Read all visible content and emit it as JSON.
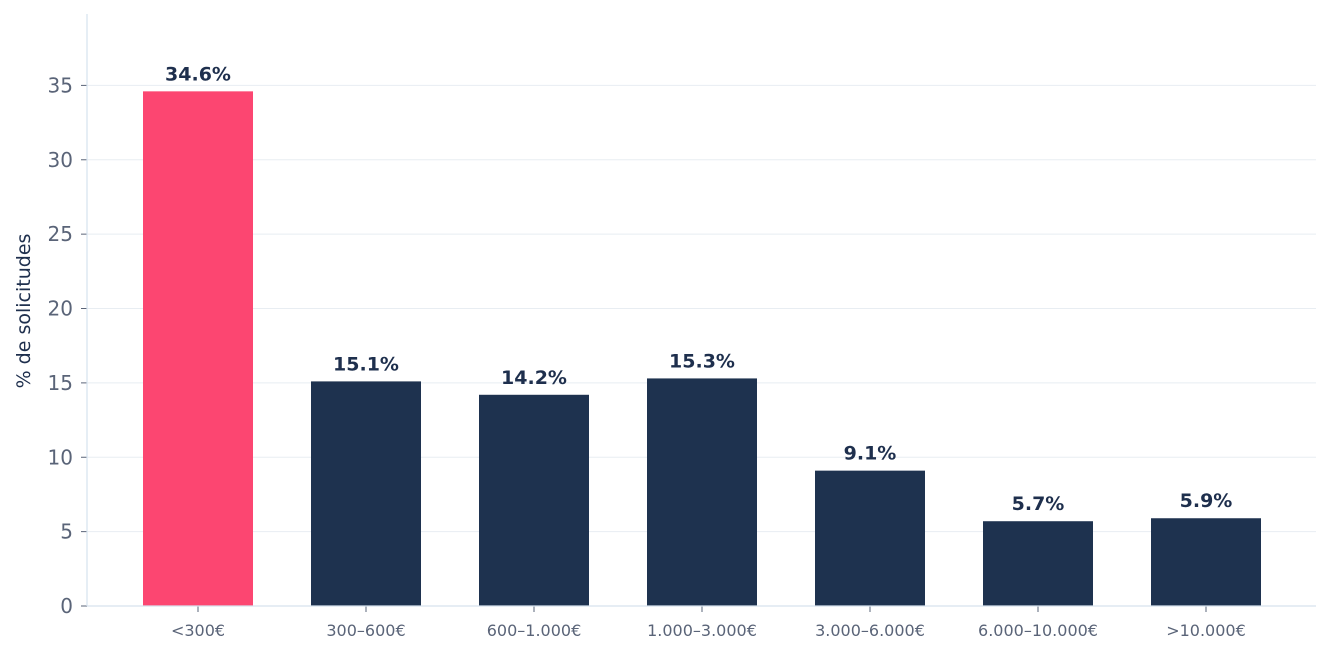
{
  "chart_data": {
    "type": "bar",
    "title": "",
    "xlabel": "",
    "ylabel": "% de solicitudes",
    "categories": [
      "<300€",
      "300–600€",
      "600–1.000€",
      "1.000–3.000€",
      "3.000–6.000€",
      "6.000–10.000€",
      ">10.000€"
    ],
    "values": [
      34.6,
      15.1,
      14.2,
      15.3,
      9.1,
      5.7,
      5.9
    ],
    "value_labels": [
      "34.6%",
      "15.1%",
      "14.2%",
      "15.3%",
      "9.1%",
      "5.7%",
      "5.9%"
    ],
    "yticks": [
      0,
      5,
      10,
      15,
      20,
      25,
      30,
      35
    ],
    "ytick_labels": [
      "0",
      "5",
      "10",
      "15",
      "20",
      "25",
      "30",
      "35"
    ],
    "ylim": [
      0,
      39.8
    ],
    "grid": "horizontal",
    "highlight_index": 0,
    "colors": {
      "highlight": "#fc4671",
      "default": "#1e324f",
      "grid": "#e8edf2",
      "axis": "#d6e2ee"
    }
  }
}
